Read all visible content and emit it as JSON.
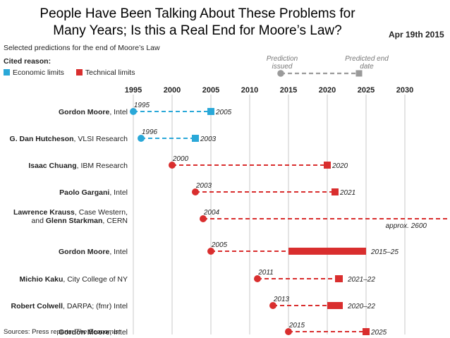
{
  "slide": {
    "title_line1": "People Have Been Talking About These Problems for",
    "title_line2": "Many Years; Is this a Real End for Moore’s Law?",
    "date": "Apr 19th 2015"
  },
  "colors": {
    "economic": "#2aa8d8",
    "technical": "#d92e2e",
    "grey": "#9a9a9a",
    "grid": "#c8c8c8"
  },
  "chart_data": {
    "type": "timeline",
    "title": "Selected predictions for the end of Moore’s Law",
    "legend_title": "Cited reason:",
    "legend": [
      {
        "name": "Economic limits",
        "key": "economic"
      },
      {
        "name": "Technical limits",
        "key": "technical"
      }
    ],
    "key_issued": "Prediction issued",
    "key_predicted": "Predicted end date",
    "x_ticks": [
      1995,
      2000,
      2005,
      2010,
      2015,
      2020,
      2025,
      2030
    ],
    "xlim": [
      1995,
      2030
    ],
    "rows": [
      {
        "name": "Gordon Moore",
        "org": ", Intel",
        "type": "economic",
        "issued": 1995,
        "issued_label": "1995",
        "end_start": 2005,
        "end_end": 2005,
        "end_label": "2005"
      },
      {
        "name": "G. Dan Hutcheson",
        "org": ", VLSI Research",
        "type": "economic",
        "issued": 1996,
        "issued_label": "1996",
        "end_start": 2003,
        "end_end": 2003,
        "end_label": "2003"
      },
      {
        "name": "Isaac Chuang",
        "org": ", IBM Research",
        "type": "technical",
        "issued": 2000,
        "issued_label": "2000",
        "end_start": 2020,
        "end_end": 2020,
        "end_label": "2020"
      },
      {
        "name": "Paolo Gargani",
        "org": ", Intel",
        "type": "technical",
        "issued": 2003,
        "issued_label": "2003",
        "end_start": 2021,
        "end_end": 2021,
        "end_label": "2021"
      },
      {
        "name": "Lawrence Krauss",
        "org": ", Case Western,",
        "name2": "Glenn Starkman",
        "org2": ", CERN",
        "prefix2": "and ",
        "type": "technical",
        "issued": 2004,
        "issued_label": "2004",
        "end_start": 2600,
        "end_end": 2600,
        "end_label": "approx. 2600",
        "offscale": true
      },
      {
        "name": "Gordon Moore",
        "org": ", Intel",
        "type": "technical",
        "issued": 2005,
        "issued_label": "2005",
        "end_start": 2015,
        "end_end": 2025,
        "end_label": "2015–25"
      },
      {
        "name": "Michio Kaku",
        "org": ", City College of NY",
        "type": "technical",
        "issued": 2011,
        "issued_label": "2011",
        "end_start": 2021,
        "end_end": 2022,
        "end_label": "2021–22"
      },
      {
        "name": "Robert Colwell",
        "org": ", DARPA; (fmr) Intel",
        "type": "technical",
        "issued": 2013,
        "issued_label": "2013",
        "end_start": 2020,
        "end_end": 2022,
        "end_label": "2020–22"
      },
      {
        "name": "Gordon Moore",
        "org": ", Intel",
        "type": "technical",
        "issued": 2015,
        "issued_label": "2015",
        "end_start": 2025,
        "end_end": 2025,
        "end_label": "2025"
      }
    ],
    "source_prefix": "Sources: Press reports; ",
    "source_pub": "The Economist"
  }
}
